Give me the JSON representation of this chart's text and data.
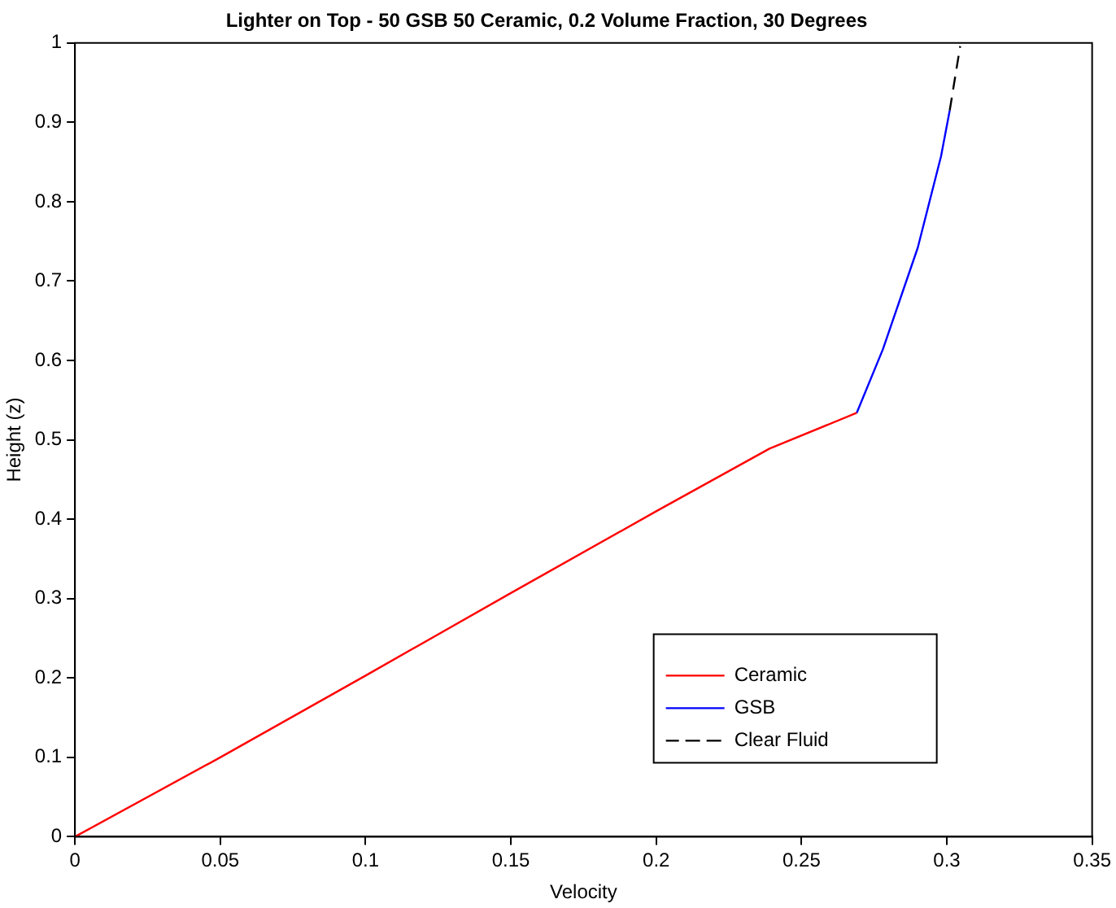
{
  "chart_data": {
    "type": "line",
    "title": "Lighter on Top - 50 GSB 50 Ceramic, 0.2 Volume Fraction, 30 Degrees",
    "xlabel": "Velocity",
    "ylabel": "Height (z)",
    "xlim": [
      0,
      0.35
    ],
    "xticks": [
      0,
      0.05,
      0.1,
      0.15,
      0.2,
      0.25,
      0.3,
      0.35
    ],
    "ylim": [
      0,
      1
    ],
    "yticks": [
      0,
      0.1,
      0.2,
      0.3,
      0.4,
      0.5,
      0.6,
      0.7,
      0.8,
      0.9,
      1
    ],
    "grid": false,
    "legend": "bottom right",
    "marker": "none",
    "series": [
      {
        "name": "Ceramic",
        "color": "#ff0000",
        "line_style": "solid",
        "x": [
          0,
          0.05,
          0.1,
          0.15,
          0.2,
          0.239,
          0.269
        ],
        "values": [
          0,
          0.1,
          0.203,
          0.307,
          0.41,
          0.489,
          0.534
        ]
      },
      {
        "name": "GSB",
        "color": "#0000ff",
        "line_style": "solid",
        "x": [
          0.269,
          0.278,
          0.29,
          0.298,
          0.301
        ],
        "values": [
          0.534,
          0.614,
          0.742,
          0.857,
          0.915
        ]
      },
      {
        "name": "Clear Fluid",
        "color": "#000000",
        "line_style": "dashed",
        "x": [
          0.301,
          0.3046
        ],
        "values": [
          0.915,
          0.996
        ]
      }
    ]
  }
}
